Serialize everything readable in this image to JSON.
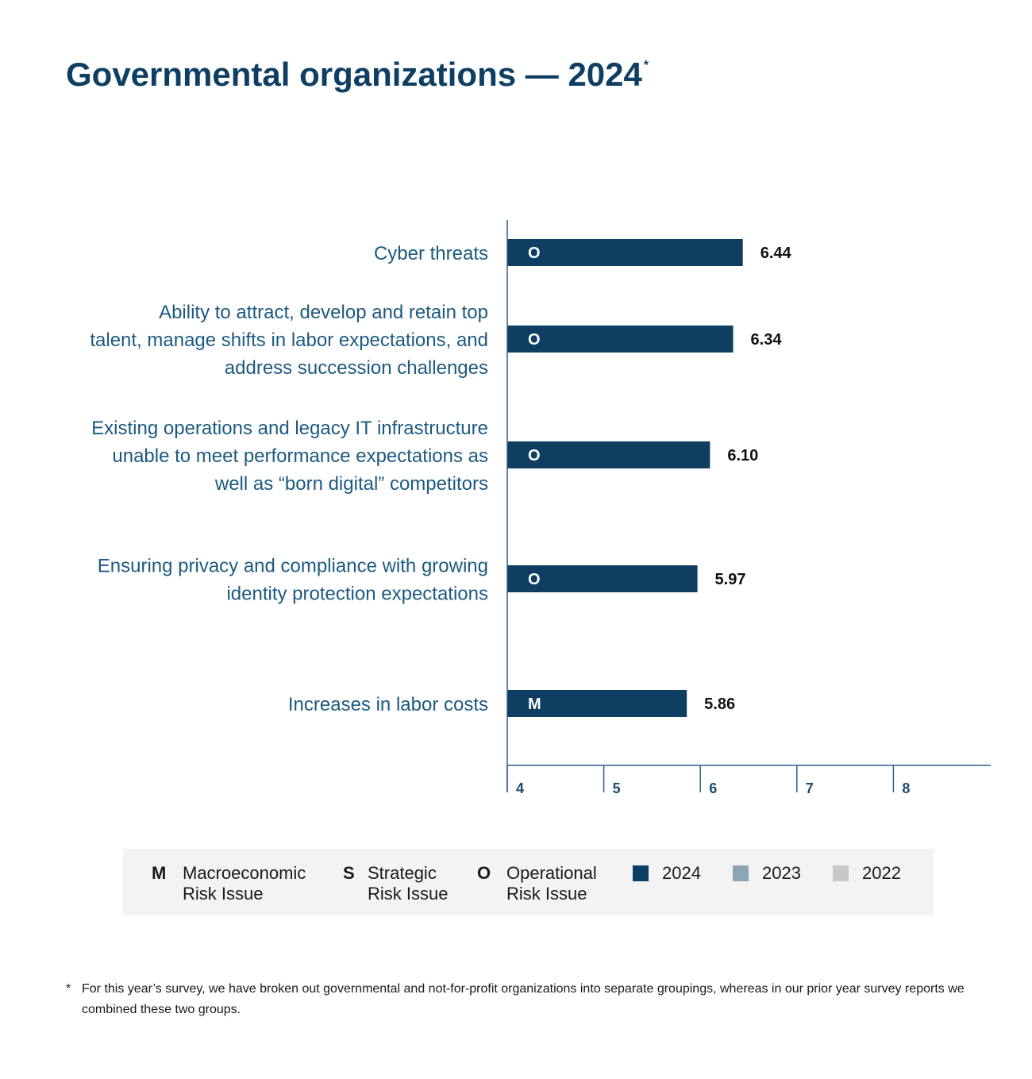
{
  "title": "Governmental organizations — 2024",
  "title_mark": "*",
  "chart_data": {
    "type": "bar",
    "orientation": "horizontal",
    "title": "Governmental organizations — 2024",
    "categories": [
      [
        "Cyber threats"
      ],
      [
        "Ability to attract, develop and retain top",
        "talent, manage shifts in labor expectations, and",
        "address succession challenges"
      ],
      [
        "Existing operations and legacy IT infrastructure",
        "unable to meet performance expectations as",
        "well as “born digital” competitors"
      ],
      [
        "Ensuring privacy and compliance with growing",
        "identity protection expectations"
      ],
      [
        "Increases in labor costs"
      ]
    ],
    "series": [
      {
        "name": "2024",
        "values": [
          6.44,
          6.34,
          6.1,
          5.97,
          5.86
        ],
        "value_labels": [
          "6.44",
          "6.34",
          "6.10",
          "5.97",
          "5.86"
        ],
        "codes": [
          "O",
          "O",
          "O",
          "O",
          "M"
        ]
      }
    ],
    "xlim": [
      4,
      9
    ],
    "xticks": [
      "4",
      "5",
      "6",
      "7",
      "8"
    ],
    "grid": false,
    "colors": {
      "2024": "#0e3f63",
      "2023": "#8ca5b5",
      "2022": "#c8c8c8",
      "axis": "#2f5f85"
    }
  },
  "legend": {
    "codes": [
      {
        "code": "M",
        "line1": "Macroeconomic",
        "line2": "Risk Issue"
      },
      {
        "code": "S",
        "line1": "Strategic",
        "line2": "Risk Issue"
      },
      {
        "code": "O",
        "line1": "Operational",
        "line2": "Risk Issue"
      }
    ],
    "years": [
      {
        "label": "2024",
        "color": "#0e3f63"
      },
      {
        "label": "2023",
        "color": "#8ca5b5"
      },
      {
        "label": "2022",
        "color": "#c8c8c8"
      }
    ]
  },
  "footnote": {
    "mark": "*",
    "text": "For this year’s survey, we have broken out governmental and not-for-profit organizations into separate groupings, whereas in our prior year survey reports we combined these two groups."
  }
}
